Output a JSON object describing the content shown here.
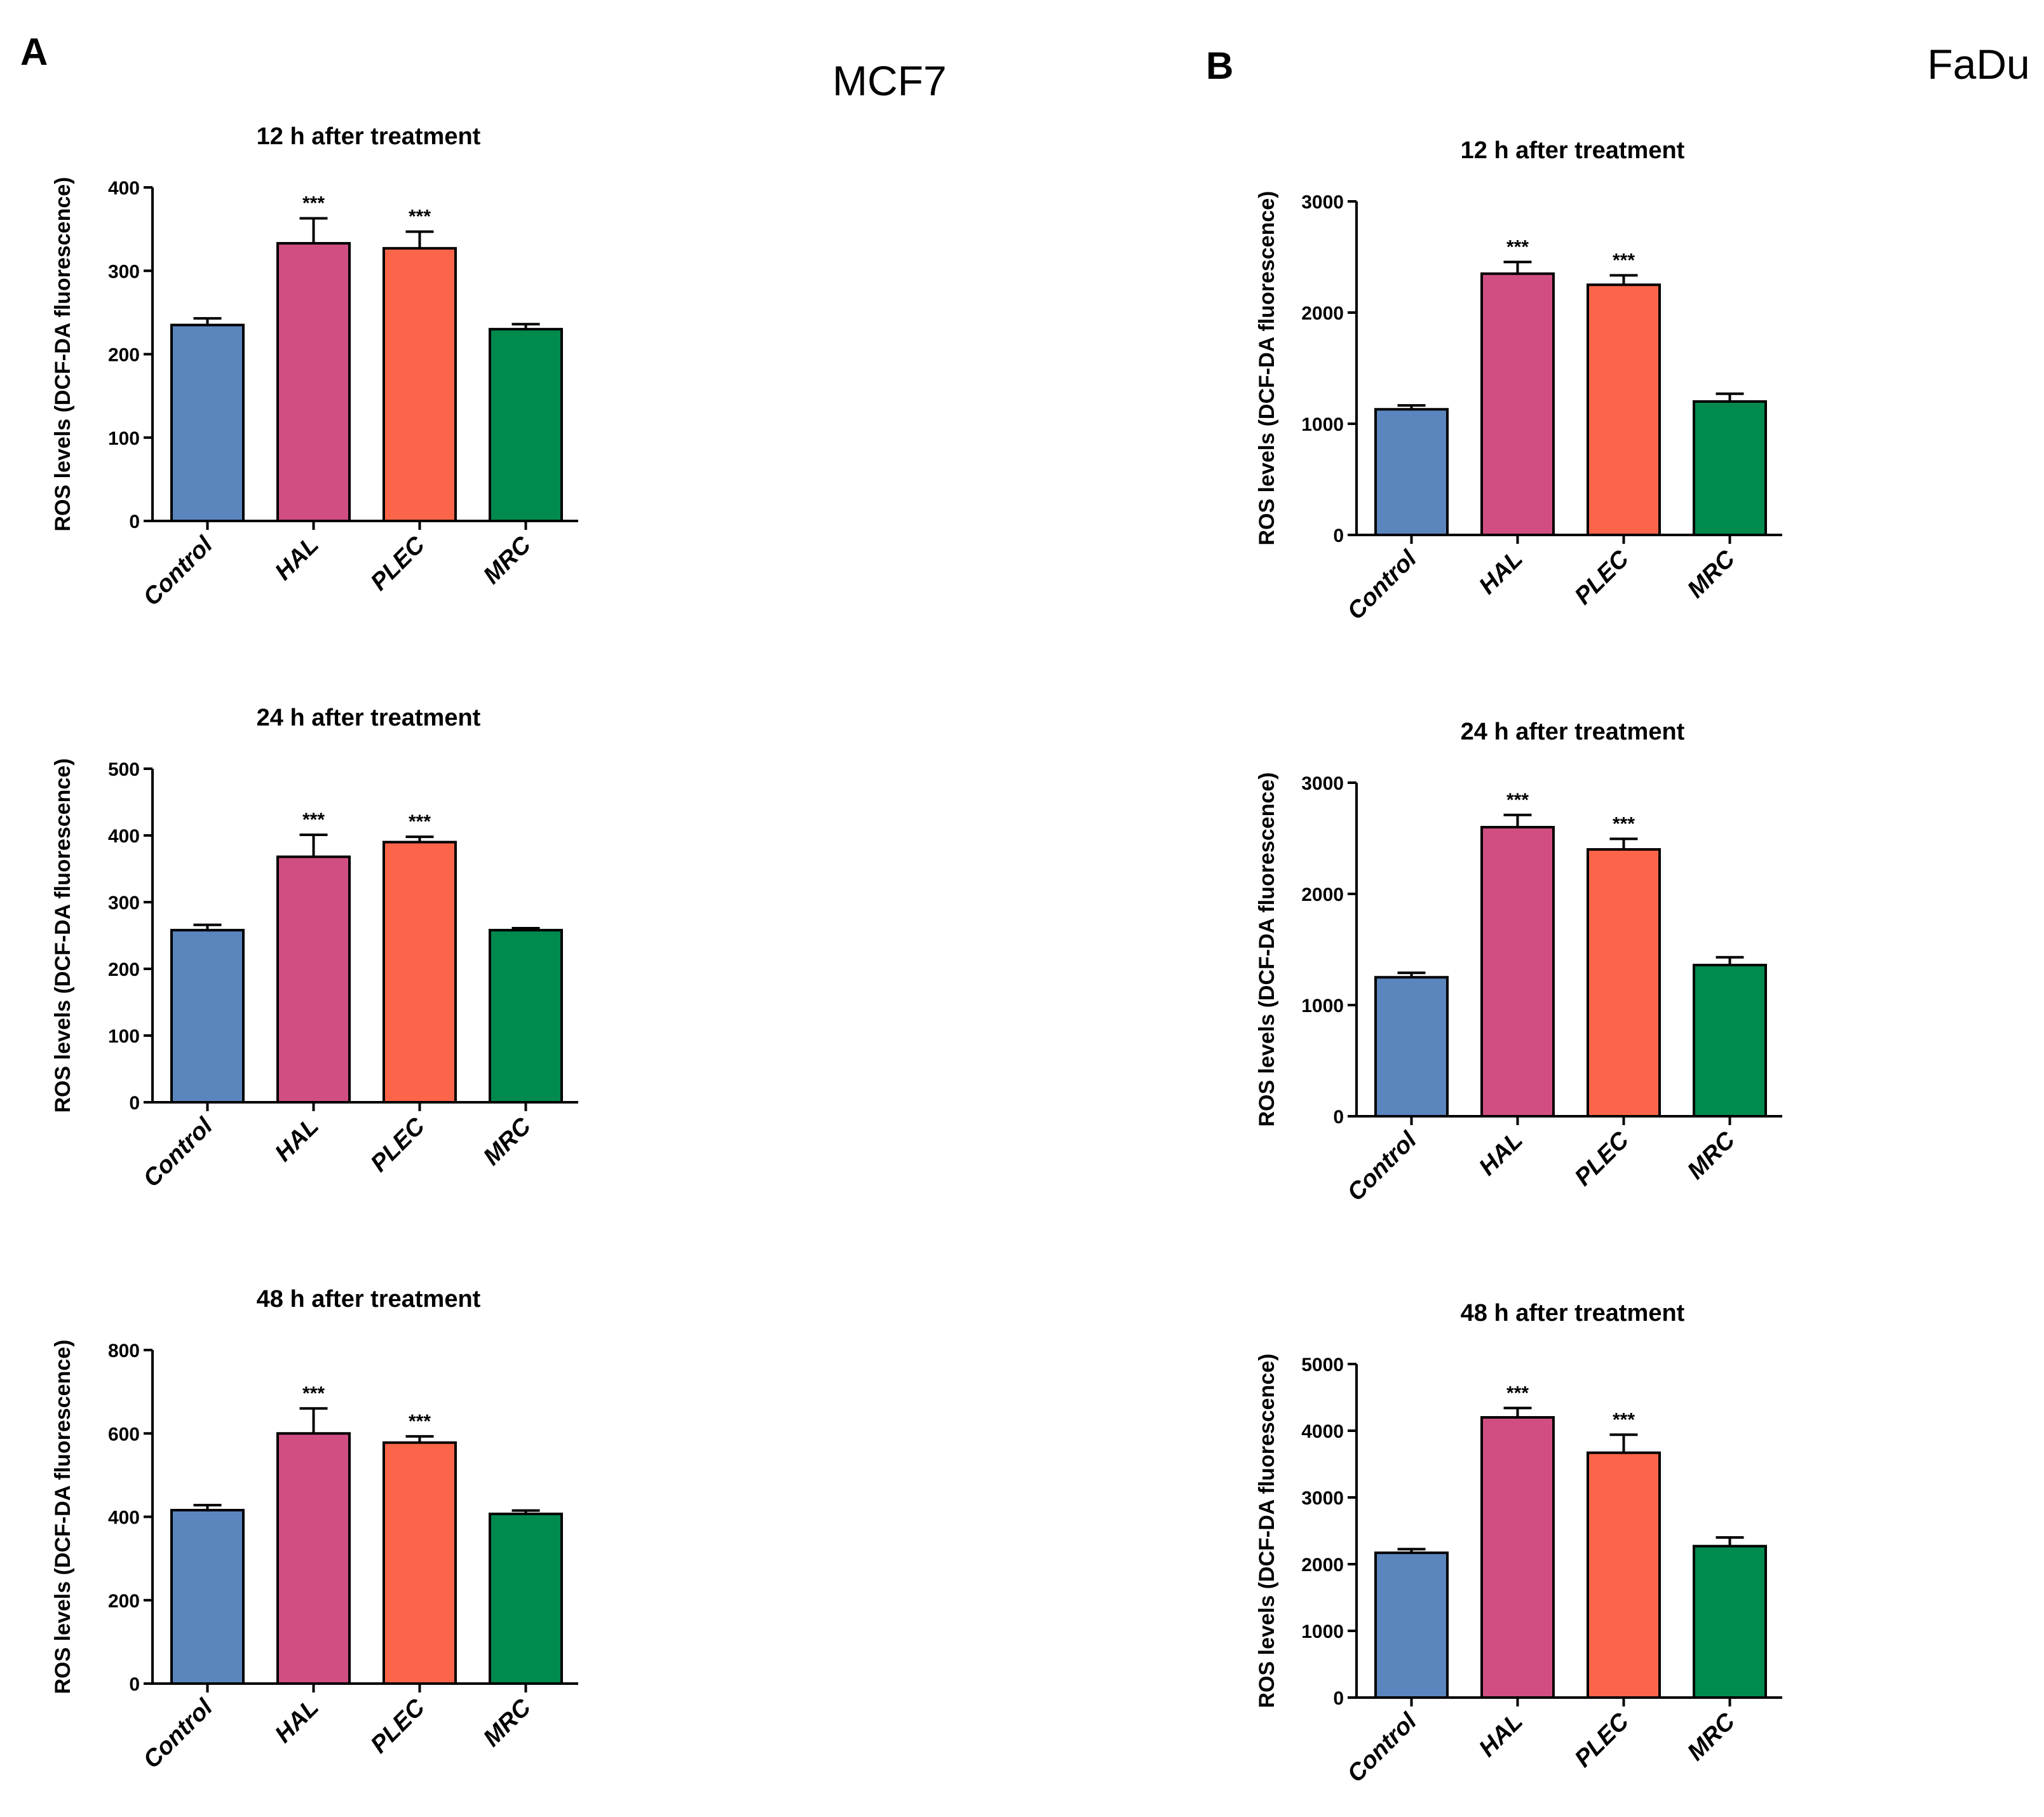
{
  "panels": [
    {
      "letter": "A",
      "title": "MCF7"
    },
    {
      "letter": "B",
      "title": "FaDu"
    }
  ],
  "colors": {
    "Control": "#5b85bd",
    "HAL": "#d14e83",
    "PLEC": "#fc6549",
    "MRC": "#008a4e"
  },
  "chart_data": [
    {
      "type": "bar",
      "panel": "A",
      "title": "12 h after treatment",
      "ylabel": "ROS levels (DCF-DA fluorescence)",
      "categories": [
        "Control",
        "HAL",
        "PLEC",
        "MRC"
      ],
      "values": [
        235,
        333,
        327,
        230
      ],
      "errors": [
        8,
        30,
        20,
        6
      ],
      "significance": [
        "",
        "***",
        "***",
        ""
      ],
      "ylim": [
        0,
        400
      ],
      "yticks": [
        0,
        100,
        200,
        300,
        400
      ],
      "ytick_labels": [
        "0",
        "100",
        "200",
        "300",
        "400"
      ]
    },
    {
      "type": "bar",
      "panel": "A",
      "title": "24 h after treatment",
      "ylabel": "ROS levels (DCF-DA fluorescence)",
      "categories": [
        "Control",
        "HAL",
        "PLEC",
        "MRC"
      ],
      "values": [
        258,
        368,
        390,
        258
      ],
      "errors": [
        8,
        33,
        8,
        3
      ],
      "significance": [
        "",
        "***",
        "***",
        ""
      ],
      "ylim": [
        0,
        500
      ],
      "yticks": [
        0,
        100,
        200,
        300,
        400,
        500
      ],
      "ytick_labels": [
        "0",
        "100",
        "200",
        "300",
        "400",
        "500"
      ]
    },
    {
      "type": "bar",
      "panel": "A",
      "title": "48 h after treatment",
      "ylabel": "ROS levels (DCF-DA fluorescence)",
      "categories": [
        "Control",
        "HAL",
        "PLEC",
        "MRC"
      ],
      "values": [
        416,
        600,
        578,
        407
      ],
      "errors": [
        12,
        60,
        15,
        8
      ],
      "significance": [
        "",
        "***",
        "***",
        ""
      ],
      "ylim": [
        0,
        800
      ],
      "yticks": [
        0,
        200,
        400,
        600,
        800
      ],
      "ytick_labels": [
        "0",
        "200",
        "400",
        "600",
        "800"
      ]
    },
    {
      "type": "bar",
      "panel": "B",
      "title": "12 h after treatment",
      "ylabel": "ROS levels (DCF-DA fluorescence)",
      "categories": [
        "Control",
        "HAL",
        "PLEC",
        "MRC"
      ],
      "values": [
        1130,
        2350,
        2250,
        1200
      ],
      "errors": [
        35,
        105,
        85,
        70
      ],
      "significance": [
        "",
        "***",
        "***",
        ""
      ],
      "ylim": [
        0,
        3000
      ],
      "yticks": [
        0,
        1000,
        2000,
        3000
      ],
      "ytick_labels": [
        "0",
        "1000",
        "2000",
        "3000"
      ]
    },
    {
      "type": "bar",
      "panel": "B",
      "title": "24 h after treatment",
      "ylabel": "ROS levels (DCF-DA fluorescence)",
      "categories": [
        "Control",
        "HAL",
        "PLEC",
        "MRC"
      ],
      "values": [
        1250,
        2600,
        2400,
        1360
      ],
      "errors": [
        40,
        110,
        95,
        70
      ],
      "significance": [
        "",
        "***",
        "***",
        ""
      ],
      "ylim": [
        0,
        3000
      ],
      "yticks": [
        0,
        1000,
        2000,
        3000
      ],
      "ytick_labels": [
        "0",
        "1000",
        "2000",
        "3000"
      ]
    },
    {
      "type": "bar",
      "panel": "B",
      "title": "48 h after treatment",
      "ylabel": "ROS levels (DCF-DA fluorescence)",
      "categories": [
        "Control",
        "HAL",
        "PLEC",
        "MRC"
      ],
      "values": [
        2170,
        4200,
        3670,
        2270
      ],
      "errors": [
        55,
        140,
        270,
        130
      ],
      "significance": [
        "",
        "***",
        "***",
        ""
      ],
      "ylim": [
        0,
        5000
      ],
      "yticks": [
        0,
        1000,
        2000,
        3000,
        4000,
        5000
      ],
      "ytick_labels": [
        "0",
        "1000",
        "2000",
        "3000",
        "4000",
        "5000"
      ]
    }
  ]
}
